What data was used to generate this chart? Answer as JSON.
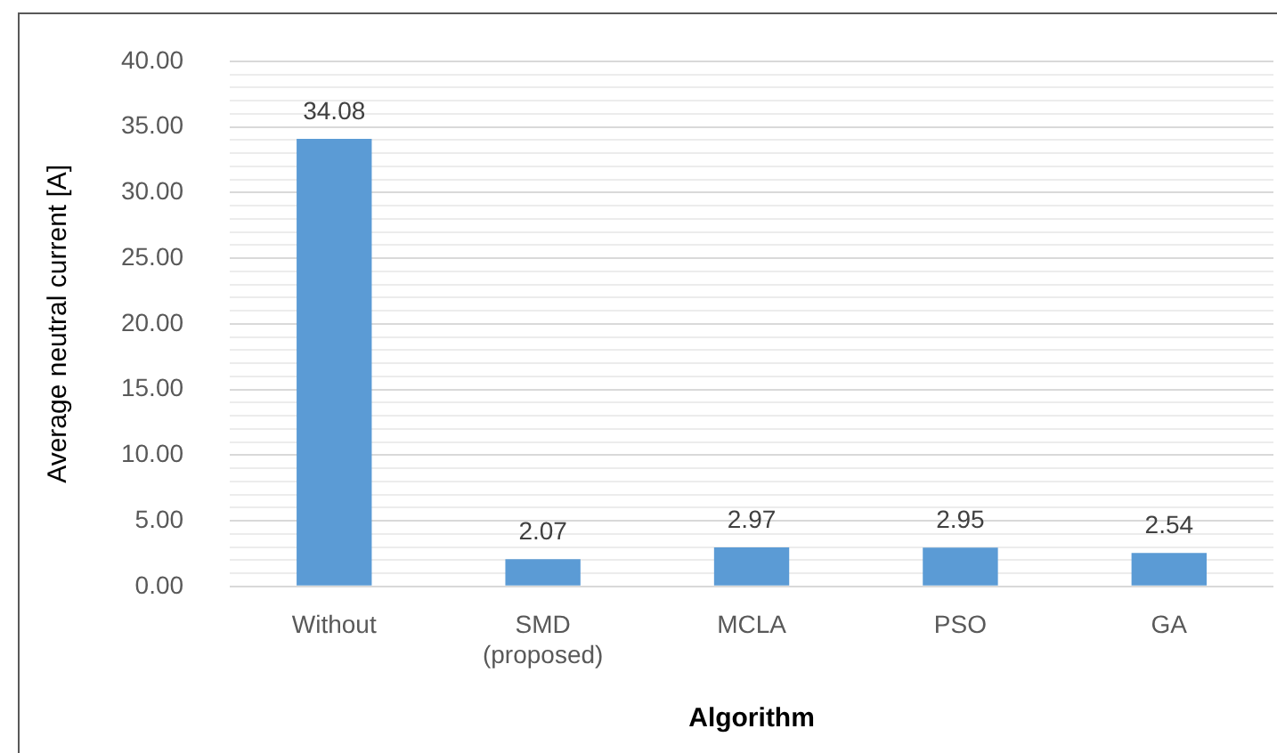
{
  "chart_data": {
    "type": "bar",
    "xlabel": "Algorithm",
    "ylabel": "Average neutral current [A]",
    "categories": [
      "Without",
      "SMD (proposed)",
      "MCLA",
      "PSO",
      "GA"
    ],
    "values": [
      34.08,
      2.07,
      2.97,
      2.95,
      2.54
    ],
    "color": "#5b9bd5",
    "data_labels": true,
    "grid": "y",
    "legend": false,
    "ylim": [
      0,
      40
    ],
    "yticks": [
      {
        "value": 0,
        "label": "0.00"
      },
      {
        "value": 1,
        "label": null
      },
      {
        "value": 2,
        "label": null
      },
      {
        "value": 3,
        "label": null
      },
      {
        "value": 4,
        "label": null
      },
      {
        "value": 5,
        "label": "5.00"
      },
      {
        "value": 6,
        "label": null
      },
      {
        "value": 7,
        "label": null
      },
      {
        "value": 8,
        "label": null
      },
      {
        "value": 9,
        "label": null
      },
      {
        "value": 10,
        "label": "10.00"
      },
      {
        "value": 11,
        "label": null
      },
      {
        "value": 12,
        "label": null
      },
      {
        "value": 13,
        "label": null
      },
      {
        "value": 14,
        "label": null
      },
      {
        "value": 15,
        "label": "15.00"
      },
      {
        "value": 16,
        "label": null
      },
      {
        "value": 17,
        "label": null
      },
      {
        "value": 18,
        "label": null
      },
      {
        "value": 19,
        "label": null
      },
      {
        "value": 20,
        "label": "20.00"
      },
      {
        "value": 21,
        "label": null
      },
      {
        "value": 22,
        "label": null
      },
      {
        "value": 23,
        "label": null
      },
      {
        "value": 24,
        "label": null
      },
      {
        "value": 25,
        "label": "25.00"
      },
      {
        "value": 26,
        "label": null
      },
      {
        "value": 27,
        "label": null
      },
      {
        "value": 28,
        "label": null
      },
      {
        "value": 29,
        "label": null
      },
      {
        "value": 30,
        "label": "30.00"
      },
      {
        "value": 31,
        "label": null
      },
      {
        "value": 32,
        "label": null
      },
      {
        "value": 33,
        "label": null
      },
      {
        "value": 34,
        "label": null
      },
      {
        "value": 35,
        "label": "35.00"
      },
      {
        "value": 36,
        "label": null
      },
      {
        "value": 37,
        "label": null
      },
      {
        "value": 38,
        "label": null
      },
      {
        "value": 39,
        "label": null
      },
      {
        "value": 40,
        "label": "40.00"
      }
    ]
  }
}
